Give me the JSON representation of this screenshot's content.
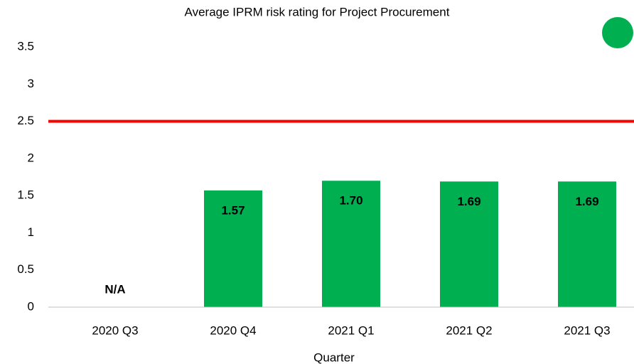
{
  "chart_data": {
    "type": "bar",
    "title": "Average IPRM risk rating for Project Procurement",
    "x_label": "Quarter",
    "categories": [
      "2020 Q3",
      "2020 Q4",
      "2021 Q1",
      "2021 Q2",
      "2021 Q3"
    ],
    "values": [
      null,
      1.57,
      1.7,
      1.69,
      1.69
    ],
    "value_labels": [
      "N/A",
      "1.57",
      "1.70",
      "1.69",
      "1.69"
    ],
    "color": "#00b050",
    "threshold": 2.5,
    "threshold_color": "#ff0000",
    "ylim": [
      0,
      3.5
    ],
    "yticks": [
      0,
      0.5,
      1,
      1.5,
      2,
      2.5,
      3,
      3.5
    ],
    "grid": false
  }
}
